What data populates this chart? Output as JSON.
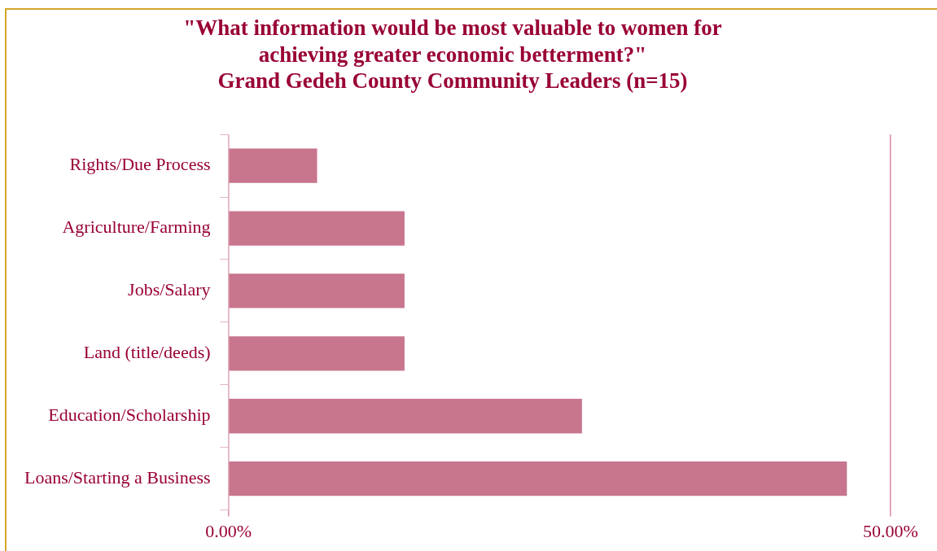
{
  "chart_data": {
    "type": "bar",
    "orientation": "horizontal",
    "title": "\"What information would be most valuable to women for achieving greater economic betterment?\"",
    "subtitle": "Grand Gedeh County Community Leaders (n=15)",
    "categories": [
      "Rights/Due Process",
      "Agriculture/Farming",
      "Jobs/Salary",
      "Land (title/deeds)",
      "Education/Scholarship",
      "Loans/Starting a Business"
    ],
    "values": [
      6.7,
      13.3,
      13.3,
      13.3,
      26.7,
      46.7
    ],
    "color": "#c8758e",
    "xlim": [
      0,
      50
    ],
    "xticks": [
      {
        "value": 0,
        "label": "0.00%"
      },
      {
        "value": 50,
        "label": "50.00%"
      }
    ],
    "grid": "x",
    "legend": false
  }
}
